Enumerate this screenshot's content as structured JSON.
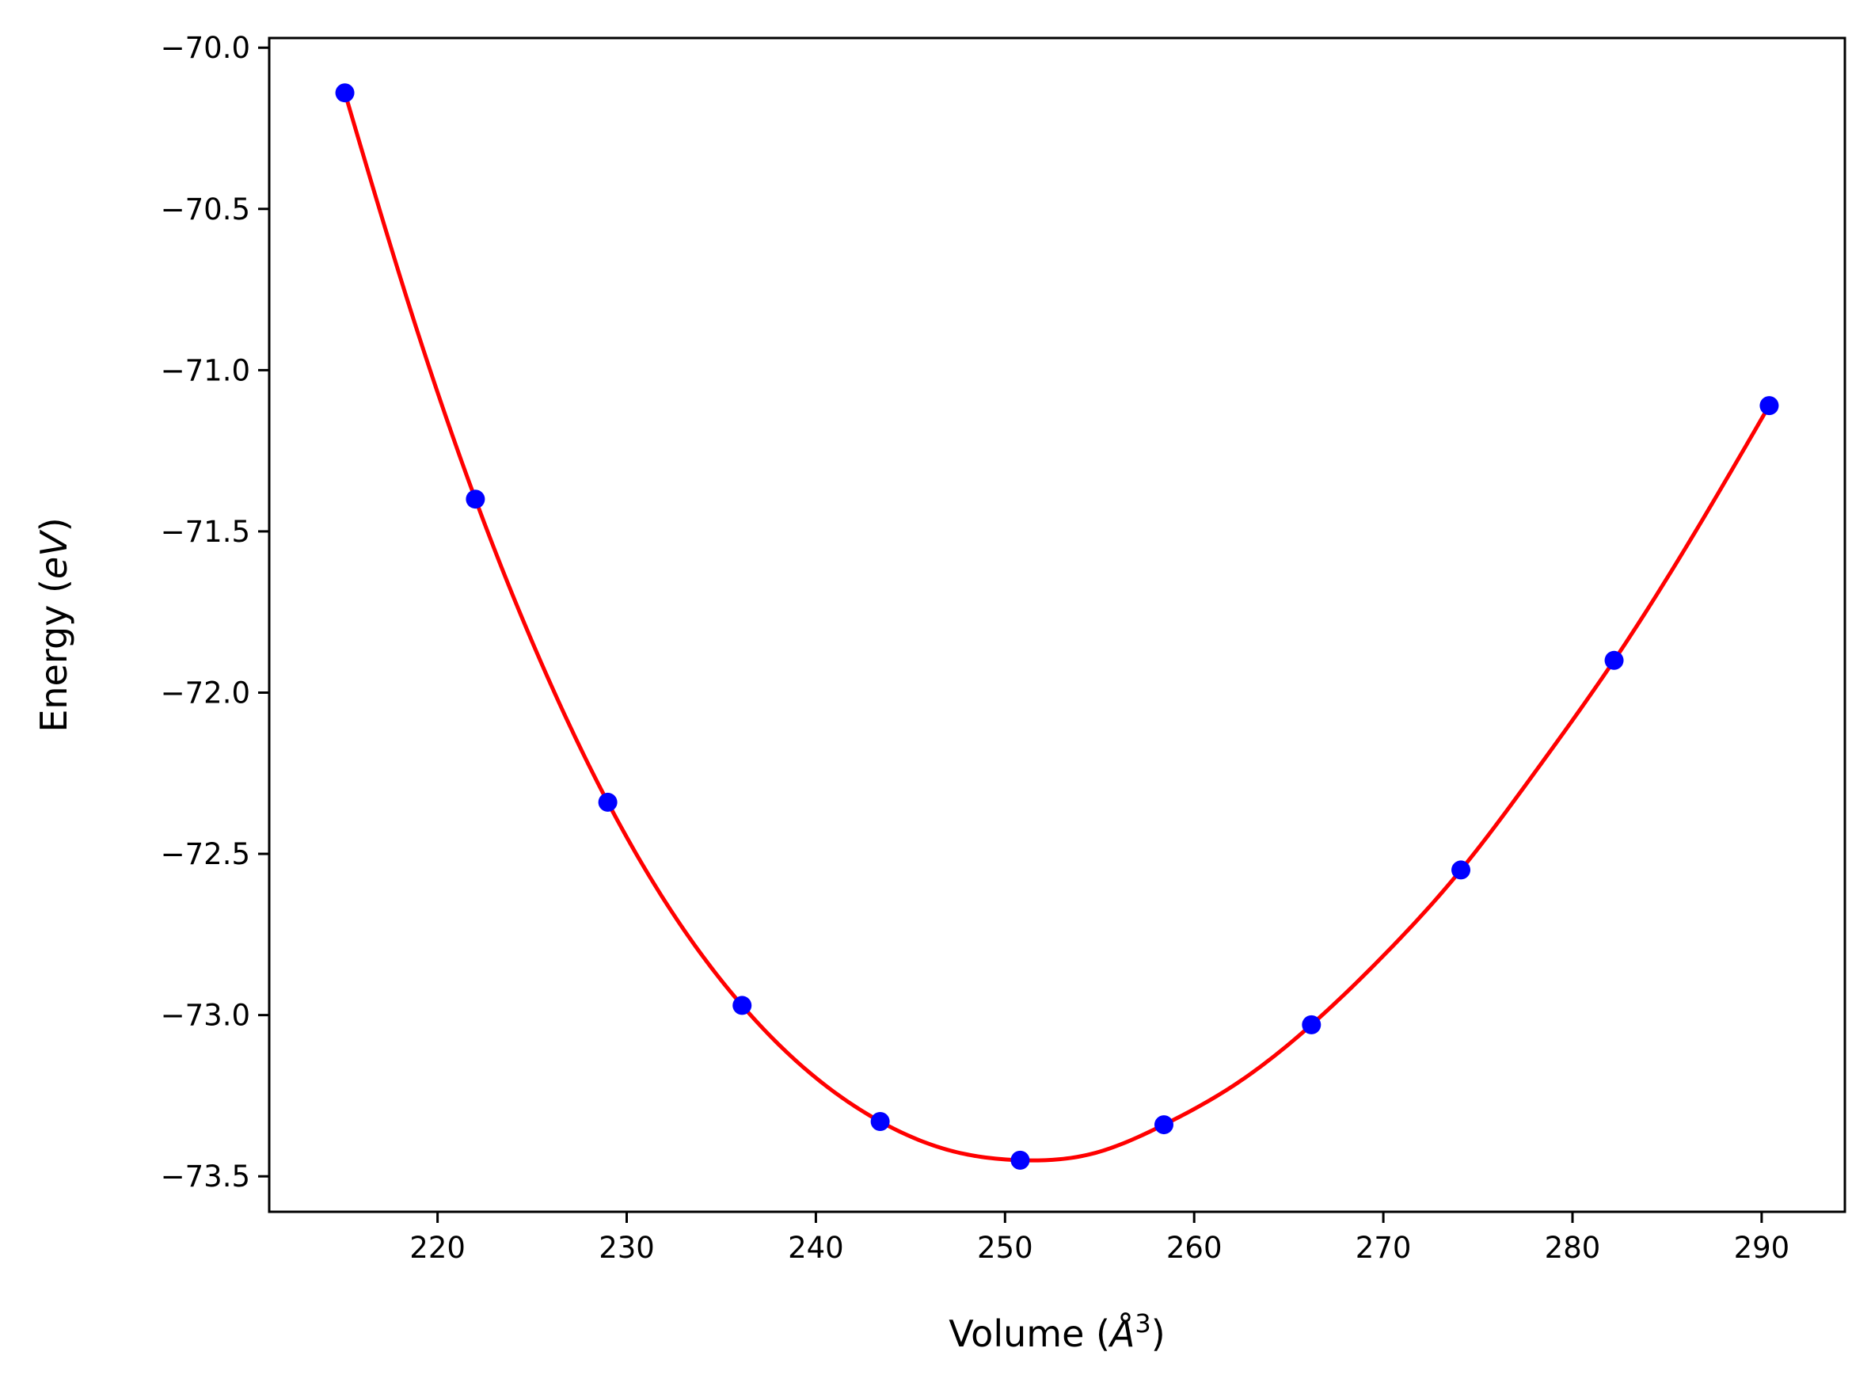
{
  "chart_data": {
    "type": "scatter",
    "title": "",
    "xlabel": {
      "prefix": "Volume (",
      "italic": "Å",
      "sup": "3",
      "suffix": ")"
    },
    "ylabel": {
      "prefix": "Energy (",
      "italic": "eV",
      "suffix": ")"
    },
    "xlim": [
      211.1,
      294.4
    ],
    "ylim": [
      -73.61,
      -69.97
    ],
    "xticks": [
      220,
      230,
      240,
      250,
      260,
      270,
      280,
      290
    ],
    "xtick_labels": [
      "220",
      "230",
      "240",
      "250",
      "260",
      "270",
      "280",
      "290"
    ],
    "yticks": [
      -70.0,
      -70.5,
      -71.0,
      -71.5,
      -72.0,
      -72.5,
      -73.0,
      -73.5
    ],
    "ytick_labels": [
      "−70.0",
      "−70.5",
      "−71.0",
      "−71.5",
      "−72.0",
      "−72.5",
      "−73.0",
      "−73.5"
    ],
    "grid": false,
    "series": [
      {
        "kind": "points",
        "color": "#0000ff",
        "x": [
          215.1,
          222.0,
          229.0,
          236.1,
          243.4,
          250.8,
          258.4,
          266.2,
          274.1,
          282.2,
          290.4
        ],
        "y": [
          -70.14,
          -71.4,
          -72.34,
          -72.97,
          -73.33,
          -73.45,
          -73.34,
          -73.03,
          -72.55,
          -71.9,
          -71.11
        ]
      },
      {
        "kind": "fit_curve",
        "color": "#ff0000",
        "x": [
          215.1,
          218.5,
          222.0,
          225.5,
          229.0,
          232.5,
          236.1,
          239.7,
          243.4,
          247.1,
          250.8,
          254.6,
          258.4,
          262.3,
          266.2,
          270.1,
          274.1,
          278.1,
          282.2,
          286.3,
          290.4
        ],
        "y": [
          -70.14,
          -70.8,
          -71.4,
          -71.91,
          -72.34,
          -72.69,
          -72.97,
          -73.18,
          -73.33,
          -73.42,
          -73.45,
          -73.43,
          -73.34,
          -73.21,
          -73.03,
          -72.81,
          -72.55,
          -72.24,
          -71.9,
          -71.52,
          -71.11
        ]
      }
    ],
    "colors": {
      "points": "#0000ff",
      "curve": "#ff0000",
      "axes": "#000000"
    }
  }
}
